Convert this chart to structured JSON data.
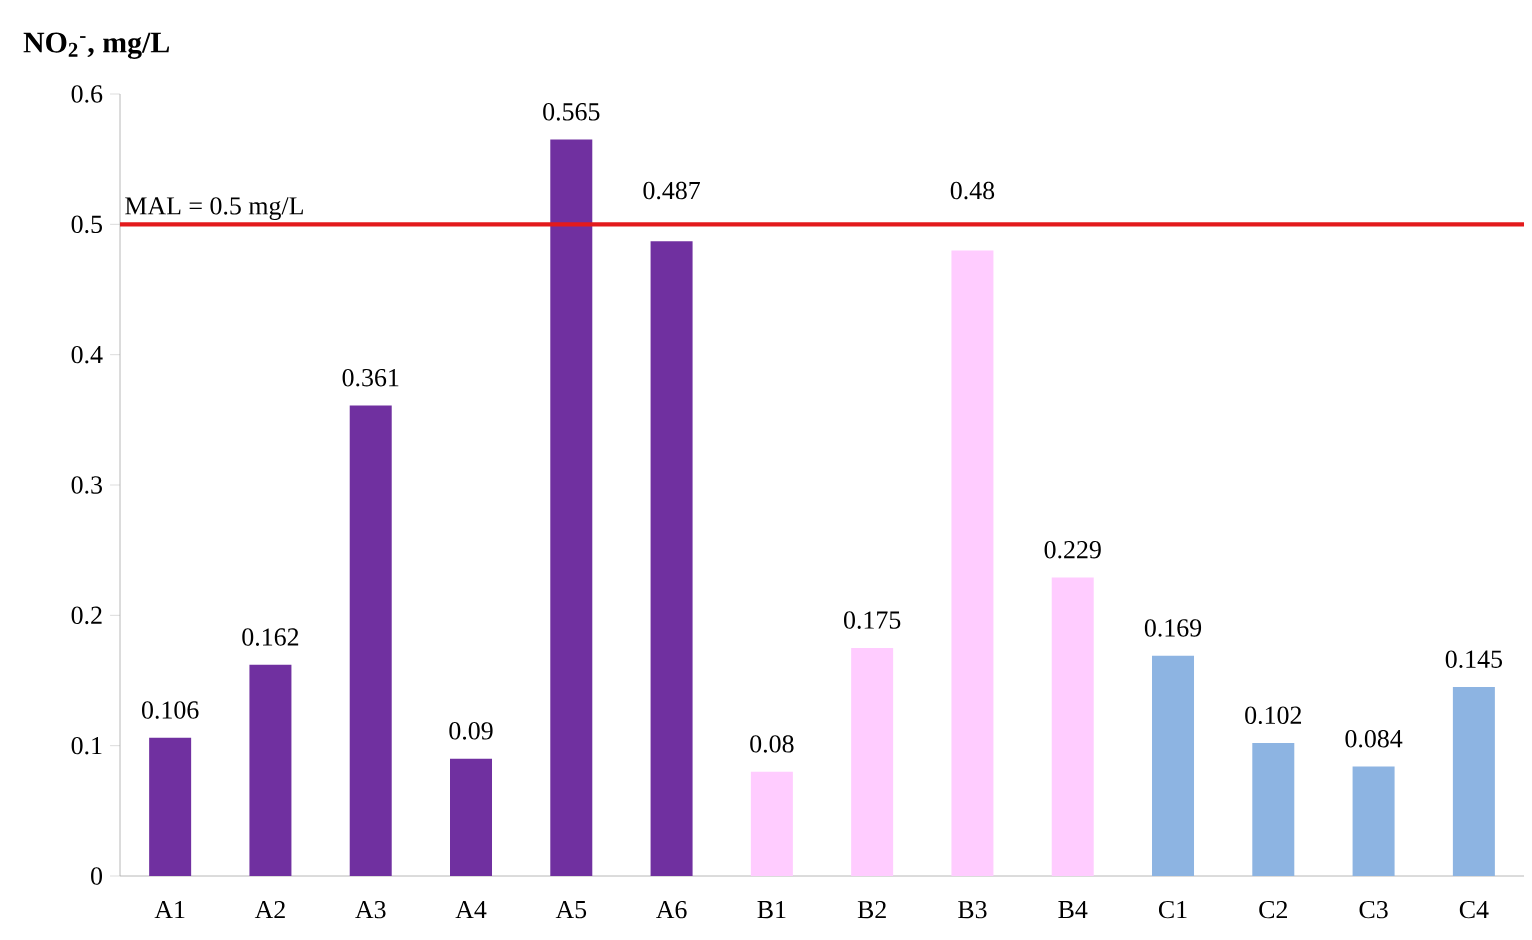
{
  "chart_data": {
    "type": "bar",
    "ylabel": "NO$_{2}$$^{-}$, mg/L",
    "categories": [
      "A1",
      "A2",
      "A3",
      "A4",
      "A5",
      "A6",
      "B1",
      "B2",
      "B3",
      "B4",
      "C1",
      "C2",
      "C3",
      "C4"
    ],
    "values": [
      0.106,
      0.162,
      0.361,
      0.09,
      0.565,
      0.487,
      0.08,
      0.175,
      0.48,
      0.229,
      0.169,
      0.102,
      0.084,
      0.145
    ],
    "colors": [
      "#7030a0",
      "#7030a0",
      "#7030a0",
      "#7030a0",
      "#7030a0",
      "#7030a0",
      "#ffccff",
      "#ffccff",
      "#ffccff",
      "#ffccff",
      "#8db4e2",
      "#8db4e2",
      "#8db4e2",
      "#8db4e2"
    ],
    "ylim": [
      0,
      0.6
    ],
    "yticks": [
      0,
      0.1,
      0.2,
      0.3,
      0.4,
      0.5,
      0.6
    ],
    "ref_lines": [
      {
        "axis": "y",
        "value": 0.5,
        "label": "MAL = 0.5 mg/L",
        "color": "#e31a1c"
      }
    ],
    "data_labels": true
  }
}
